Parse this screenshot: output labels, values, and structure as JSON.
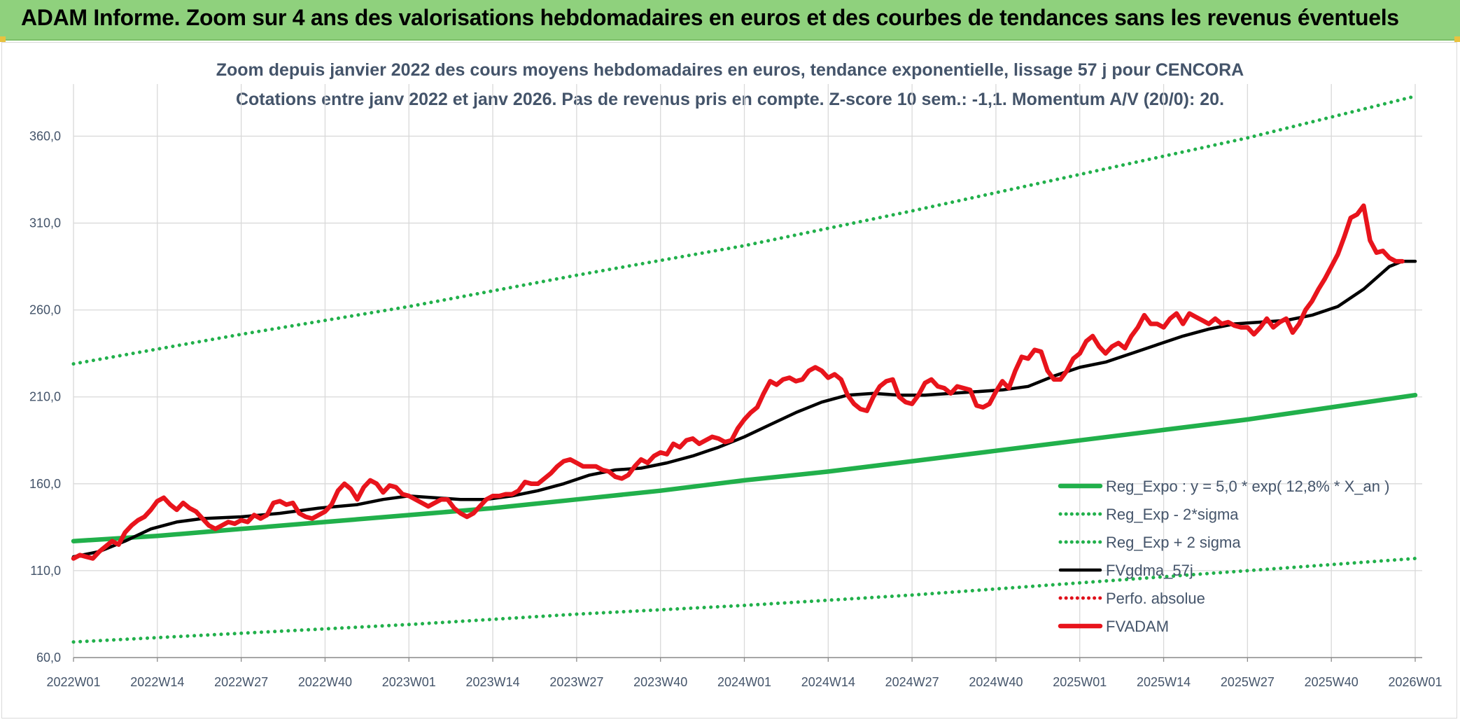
{
  "header": {
    "title": "ADAM Informe. Zoom sur 4 ans des valorisations hebdomadaires en euros et des courbes de tendances sans les revenus éventuels"
  },
  "chart_data": {
    "type": "line",
    "title": "Zoom depuis janvier 2022 des cours moyens hebdomadaires en euros, tendance exponentielle, lissage 57 j pour CENCORA",
    "subtitle": "Cotations entre janv 2022 et janv 2026. Pas de revenus pris en compte. Z-score 10 sem.: -1,1. Momentum A/V (20/0): 20.",
    "x_tick_labels": [
      "2022W01",
      "2022W14",
      "2022W27",
      "2022W40",
      "2023W01",
      "2023W14",
      "2023W27",
      "2023W40",
      "2024W01",
      "2024W14",
      "2024W27",
      "2024W40",
      "2025W01",
      "2025W14",
      "2025W27",
      "2025W40",
      "2026W01"
    ],
    "x_range_weeks": [
      0,
      208
    ],
    "ylim": [
      60,
      390
    ],
    "y_ticks": [
      60,
      110,
      160,
      210,
      260,
      310,
      360
    ],
    "y_tick_labels": [
      "60,0",
      "110,0",
      "160,0",
      "210,0",
      "260,0",
      "310,0",
      "360,0"
    ],
    "grid": true,
    "legend_position": "bottom-right",
    "series": [
      {
        "name": "Reg_Expo : y = 5,0 * exp( 12,8% *  X_an )",
        "style": "solid",
        "color": "#21b04b",
        "points": [
          [
            0,
            127
          ],
          [
            13,
            130
          ],
          [
            26,
            134
          ],
          [
            39,
            138
          ],
          [
            52,
            142
          ],
          [
            65,
            146
          ],
          [
            78,
            151
          ],
          [
            91,
            156
          ],
          [
            104,
            162
          ],
          [
            117,
            167
          ],
          [
            130,
            173
          ],
          [
            143,
            179
          ],
          [
            156,
            185
          ],
          [
            169,
            191
          ],
          [
            182,
            197
          ],
          [
            195,
            204
          ],
          [
            208,
            211
          ]
        ]
      },
      {
        "name": "Reg_Exp - 2*sigma",
        "style": "dotted",
        "color": "#21b04b",
        "points": [
          [
            0,
            69
          ],
          [
            26,
            74
          ],
          [
            52,
            79
          ],
          [
            78,
            85
          ],
          [
            104,
            90
          ],
          [
            130,
            96
          ],
          [
            156,
            103
          ],
          [
            182,
            110
          ],
          [
            208,
            117
          ]
        ]
      },
      {
        "name": "Reg_Exp + 2 sigma",
        "style": "dotted",
        "color": "#21b04b",
        "points": [
          [
            0,
            229
          ],
          [
            26,
            246
          ],
          [
            52,
            262
          ],
          [
            78,
            280
          ],
          [
            104,
            297
          ],
          [
            130,
            317
          ],
          [
            156,
            338
          ],
          [
            182,
            359
          ],
          [
            208,
            383
          ]
        ]
      },
      {
        "name": "FVgdma_57j",
        "style": "solid",
        "color": "#000000",
        "points": [
          [
            0,
            118
          ],
          [
            4,
            121
          ],
          [
            8,
            127
          ],
          [
            12,
            134
          ],
          [
            16,
            138
          ],
          [
            20,
            140
          ],
          [
            26,
            141
          ],
          [
            32,
            143
          ],
          [
            38,
            146
          ],
          [
            44,
            148
          ],
          [
            48,
            151
          ],
          [
            52,
            153
          ],
          [
            56,
            152
          ],
          [
            60,
            151
          ],
          [
            64,
            151
          ],
          [
            68,
            153
          ],
          [
            72,
            156
          ],
          [
            76,
            160
          ],
          [
            80,
            165
          ],
          [
            84,
            168
          ],
          [
            88,
            169
          ],
          [
            92,
            172
          ],
          [
            96,
            176
          ],
          [
            100,
            181
          ],
          [
            104,
            187
          ],
          [
            108,
            194
          ],
          [
            112,
            201
          ],
          [
            116,
            207
          ],
          [
            120,
            211
          ],
          [
            124,
            212
          ],
          [
            128,
            211
          ],
          [
            132,
            211
          ],
          [
            136,
            212
          ],
          [
            140,
            213
          ],
          [
            144,
            214
          ],
          [
            148,
            216
          ],
          [
            152,
            222
          ],
          [
            156,
            227
          ],
          [
            160,
            230
          ],
          [
            164,
            235
          ],
          [
            168,
            240
          ],
          [
            172,
            245
          ],
          [
            176,
            249
          ],
          [
            180,
            252
          ],
          [
            184,
            253
          ],
          [
            188,
            254
          ],
          [
            192,
            257
          ],
          [
            196,
            262
          ],
          [
            200,
            272
          ],
          [
            204,
            285
          ],
          [
            206,
            288
          ],
          [
            208,
            288
          ]
        ]
      },
      {
        "name": "Perfo. absolue",
        "style": "dotted",
        "color": "#e0101a",
        "points": []
      },
      {
        "name": "FVADAM",
        "style": "solid",
        "color": "#e8141c",
        "points": [
          [
            0,
            117
          ],
          [
            1,
            119
          ],
          [
            2,
            118
          ],
          [
            3,
            117
          ],
          [
            4,
            121
          ],
          [
            5,
            124
          ],
          [
            6,
            127
          ],
          [
            7,
            125
          ],
          [
            8,
            132
          ],
          [
            9,
            136
          ],
          [
            10,
            139
          ],
          [
            11,
            141
          ],
          [
            12,
            145
          ],
          [
            13,
            150
          ],
          [
            14,
            152
          ],
          [
            15,
            148
          ],
          [
            16,
            145
          ],
          [
            17,
            149
          ],
          [
            18,
            146
          ],
          [
            19,
            144
          ],
          [
            20,
            140
          ],
          [
            21,
            136
          ],
          [
            22,
            134
          ],
          [
            23,
            136
          ],
          [
            24,
            138
          ],
          [
            25,
            137
          ],
          [
            26,
            139
          ],
          [
            27,
            138
          ],
          [
            28,
            142
          ],
          [
            29,
            140
          ],
          [
            30,
            142
          ],
          [
            31,
            149
          ],
          [
            32,
            150
          ],
          [
            33,
            148
          ],
          [
            34,
            149
          ],
          [
            35,
            143
          ],
          [
            36,
            141
          ],
          [
            37,
            140
          ],
          [
            38,
            142
          ],
          [
            39,
            144
          ],
          [
            40,
            148
          ],
          [
            41,
            156
          ],
          [
            42,
            160
          ],
          [
            43,
            157
          ],
          [
            44,
            151
          ],
          [
            45,
            158
          ],
          [
            46,
            162
          ],
          [
            47,
            160
          ],
          [
            48,
            155
          ],
          [
            49,
            159
          ],
          [
            50,
            158
          ],
          [
            51,
            154
          ],
          [
            52,
            153
          ],
          [
            53,
            151
          ],
          [
            54,
            149
          ],
          [
            55,
            147
          ],
          [
            56,
            149
          ],
          [
            57,
            151
          ],
          [
            58,
            151
          ],
          [
            59,
            146
          ],
          [
            60,
            143
          ],
          [
            61,
            141
          ],
          [
            62,
            143
          ],
          [
            63,
            147
          ],
          [
            64,
            151
          ],
          [
            65,
            153
          ],
          [
            66,
            153
          ],
          [
            67,
            154
          ],
          [
            68,
            154
          ],
          [
            69,
            156
          ],
          [
            70,
            161
          ],
          [
            71,
            160
          ],
          [
            72,
            160
          ],
          [
            73,
            163
          ],
          [
            74,
            166
          ],
          [
            75,
            170
          ],
          [
            76,
            173
          ],
          [
            77,
            174
          ],
          [
            78,
            172
          ],
          [
            79,
            170
          ],
          [
            80,
            170
          ],
          [
            81,
            170
          ],
          [
            82,
            168
          ],
          [
            83,
            167
          ],
          [
            84,
            164
          ],
          [
            85,
            163
          ],
          [
            86,
            165
          ],
          [
            87,
            170
          ],
          [
            88,
            174
          ],
          [
            89,
            172
          ],
          [
            90,
            176
          ],
          [
            91,
            178
          ],
          [
            92,
            177
          ],
          [
            93,
            183
          ],
          [
            94,
            181
          ],
          [
            95,
            185
          ],
          [
            96,
            186
          ],
          [
            97,
            183
          ],
          [
            98,
            185
          ],
          [
            99,
            187
          ],
          [
            100,
            186
          ],
          [
            101,
            184
          ],
          [
            102,
            185
          ],
          [
            103,
            192
          ],
          [
            104,
            197
          ],
          [
            105,
            201
          ],
          [
            106,
            204
          ],
          [
            107,
            212
          ],
          [
            108,
            219
          ],
          [
            109,
            217
          ],
          [
            110,
            220
          ],
          [
            111,
            221
          ],
          [
            112,
            219
          ],
          [
            113,
            220
          ],
          [
            114,
            225
          ],
          [
            115,
            227
          ],
          [
            116,
            225
          ],
          [
            117,
            221
          ],
          [
            118,
            223
          ],
          [
            119,
            220
          ],
          [
            120,
            211
          ],
          [
            121,
            206
          ],
          [
            122,
            203
          ],
          [
            123,
            202
          ],
          [
            124,
            210
          ],
          [
            125,
            216
          ],
          [
            126,
            219
          ],
          [
            127,
            220
          ],
          [
            128,
            210
          ],
          [
            129,
            207
          ],
          [
            130,
            206
          ],
          [
            131,
            211
          ],
          [
            132,
            218
          ],
          [
            133,
            220
          ],
          [
            134,
            216
          ],
          [
            135,
            215
          ],
          [
            136,
            212
          ],
          [
            137,
            216
          ],
          [
            138,
            215
          ],
          [
            139,
            214
          ],
          [
            140,
            205
          ],
          [
            141,
            204
          ],
          [
            142,
            206
          ],
          [
            143,
            213
          ],
          [
            144,
            219
          ],
          [
            145,
            215
          ],
          [
            146,
            225
          ],
          [
            147,
            233
          ],
          [
            148,
            232
          ],
          [
            149,
            237
          ],
          [
            150,
            236
          ],
          [
            151,
            225
          ],
          [
            152,
            220
          ],
          [
            153,
            220
          ],
          [
            154,
            225
          ],
          [
            155,
            232
          ],
          [
            156,
            235
          ],
          [
            157,
            242
          ],
          [
            158,
            245
          ],
          [
            159,
            239
          ],
          [
            160,
            235
          ],
          [
            161,
            239
          ],
          [
            162,
            241
          ],
          [
            163,
            238
          ],
          [
            164,
            245
          ],
          [
            165,
            250
          ],
          [
            166,
            257
          ],
          [
            167,
            252
          ],
          [
            168,
            252
          ],
          [
            169,
            250
          ],
          [
            170,
            255
          ],
          [
            171,
            258
          ],
          [
            172,
            252
          ],
          [
            173,
            258
          ],
          [
            174,
            256
          ],
          [
            175,
            254
          ],
          [
            176,
            252
          ],
          [
            177,
            255
          ],
          [
            178,
            252
          ],
          [
            179,
            253
          ],
          [
            180,
            251
          ],
          [
            181,
            250
          ],
          [
            182,
            250
          ],
          [
            183,
            246
          ],
          [
            184,
            250
          ],
          [
            185,
            255
          ],
          [
            186,
            250
          ],
          [
            187,
            253
          ],
          [
            188,
            255
          ],
          [
            189,
            247
          ],
          [
            190,
            252
          ],
          [
            191,
            260
          ],
          [
            192,
            265
          ],
          [
            193,
            272
          ],
          [
            194,
            278
          ],
          [
            195,
            285
          ],
          [
            196,
            292
          ],
          [
            197,
            302
          ],
          [
            198,
            313
          ],
          [
            199,
            315
          ],
          [
            200,
            320
          ],
          [
            201,
            300
          ],
          [
            202,
            293
          ],
          [
            203,
            294
          ],
          [
            204,
            290
          ],
          [
            205,
            288
          ],
          [
            206,
            288
          ]
        ]
      }
    ]
  }
}
